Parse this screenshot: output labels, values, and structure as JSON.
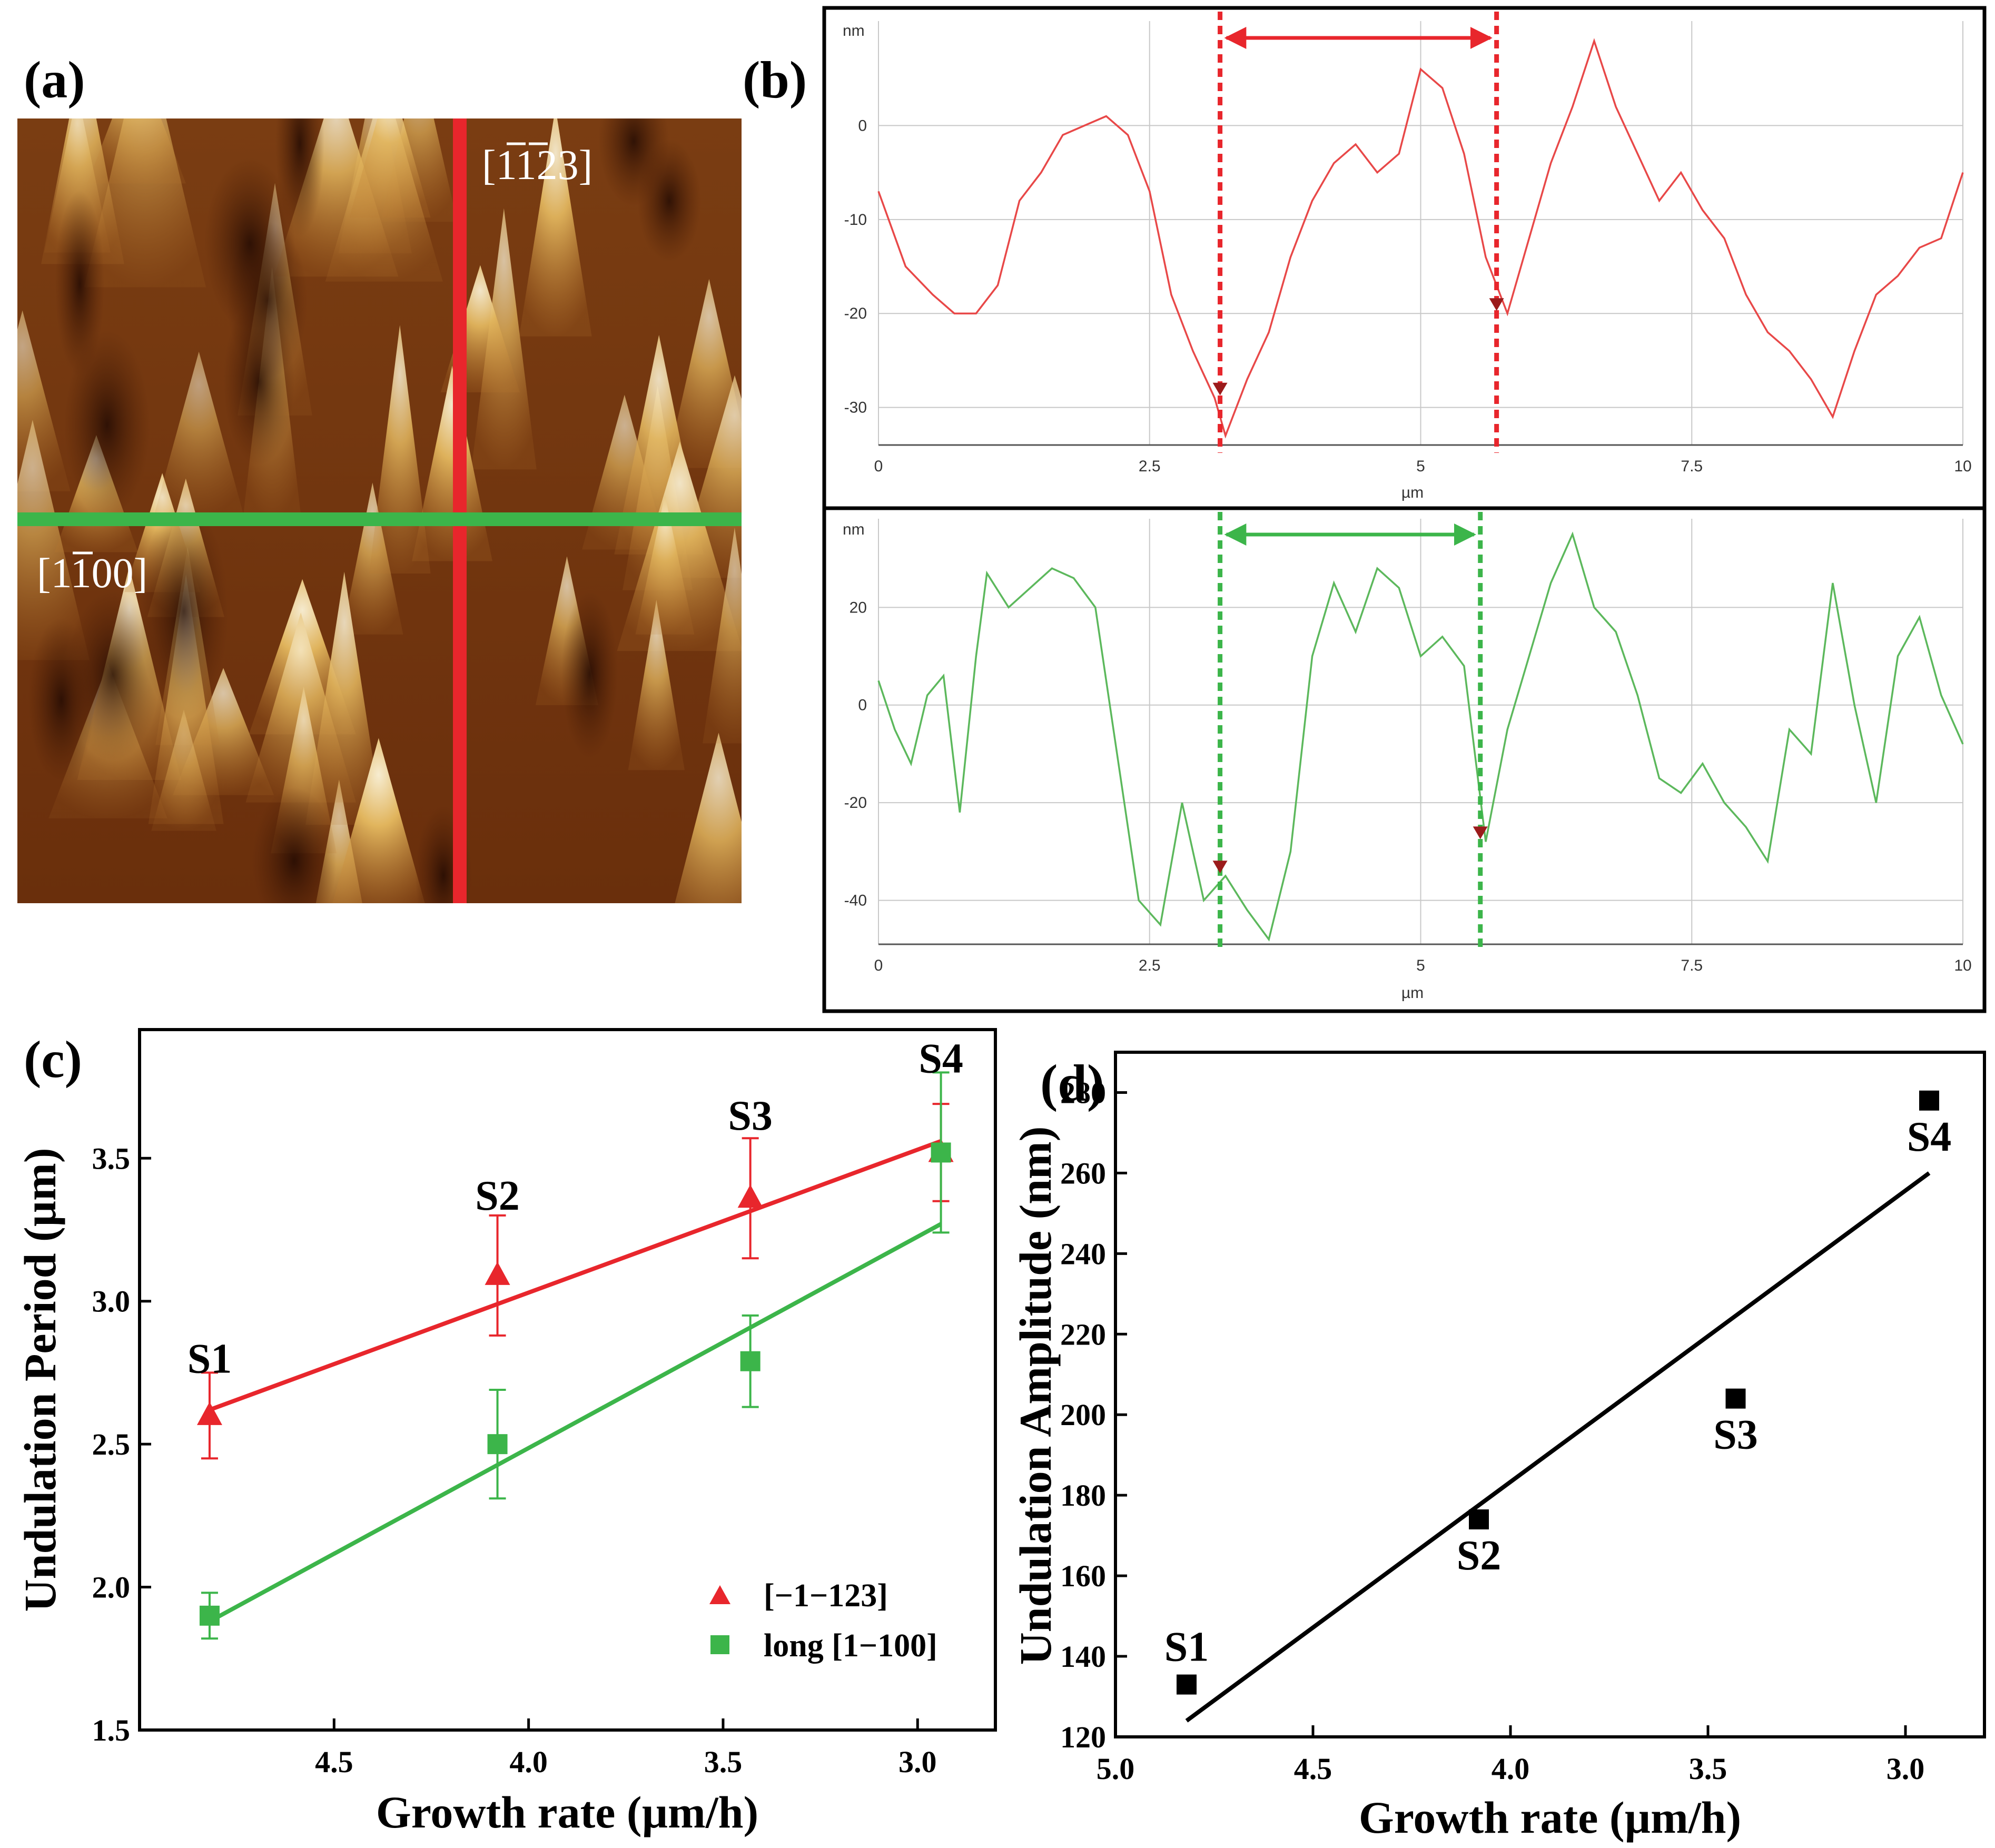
{
  "colors": {
    "red": "#e8262c",
    "green": "#3cb54a",
    "profile_red": "#e84848",
    "profile_green": "#5cb85c",
    "marker_dark": "#9b1b1b",
    "black": "#000000",
    "grid": "#c8c8c8"
  },
  "panels": {
    "a": "(a)",
    "b": "(b)",
    "c": "(c)",
    "d": "(d)"
  },
  "afm_image": {
    "label_vertical": "[¯1¯123]",
    "label_vertical_digits": "1123",
    "label_horizontal": "[1¯100]",
    "label_horizontal_digits": "1100"
  },
  "chart_data": [
    {
      "id": "b-top",
      "type": "line",
      "title": "",
      "xlabel": "µm",
      "ylabel": "nm",
      "xlim": [
        0,
        10
      ],
      "ylim": [
        -34,
        10
      ],
      "xticks": [
        0,
        2.5,
        5,
        7.5,
        10
      ],
      "xtick_labels": [
        "0",
        "2.5",
        "5",
        "7.5",
        "10"
      ],
      "yticks": [
        -30,
        -20,
        -10,
        0
      ],
      "ytick_labels": [
        "-30",
        "-20",
        "-10",
        "0"
      ],
      "markers_x": [
        3.15,
        5.7
      ],
      "x": [
        0,
        0.25,
        0.5,
        0.7,
        0.9,
        1.1,
        1.3,
        1.5,
        1.7,
        1.9,
        2.1,
        2.3,
        2.5,
        2.7,
        2.9,
        3.1,
        3.2,
        3.4,
        3.6,
        3.8,
        4.0,
        4.2,
        4.4,
        4.6,
        4.8,
        5.0,
        5.2,
        5.4,
        5.6,
        5.8,
        6.0,
        6.2,
        6.4,
        6.6,
        6.8,
        7.0,
        7.2,
        7.4,
        7.6,
        7.8,
        8.0,
        8.2,
        8.4,
        8.6,
        8.8,
        9.0,
        9.2,
        9.4,
        9.6,
        9.8,
        10.0
      ],
      "y": [
        -7,
        -15,
        -18,
        -20,
        -20,
        -17,
        -8,
        -5,
        -1,
        0,
        1,
        -1,
        -7,
        -18,
        -24,
        -29,
        -33,
        -27,
        -22,
        -14,
        -8,
        -4,
        -2,
        -5,
        -3,
        6,
        4,
        -3,
        -14,
        -20,
        -12,
        -4,
        2,
        9,
        2,
        -3,
        -8,
        -5,
        -9,
        -12,
        -18,
        -22,
        -24,
        -27,
        -31,
        -24,
        -18,
        -16,
        -13,
        -12,
        -5
      ]
    },
    {
      "id": "b-bottom",
      "type": "line",
      "title": "",
      "xlabel": "µm",
      "ylabel": "nm",
      "xlim": [
        0,
        10
      ],
      "ylim": [
        -49,
        36
      ],
      "xticks": [
        0,
        2.5,
        5,
        7.5,
        10
      ],
      "xtick_labels": [
        "0",
        "2.5",
        "5",
        "7.5",
        "10"
      ],
      "yticks": [
        -40,
        -20,
        0,
        20
      ],
      "ytick_labels": [
        "-40",
        "-20",
        "0",
        "20"
      ],
      "markers_x": [
        3.15,
        5.55
      ],
      "x": [
        0,
        0.15,
        0.3,
        0.45,
        0.6,
        0.75,
        0.9,
        1.0,
        1.2,
        1.4,
        1.6,
        1.8,
        2.0,
        2.2,
        2.4,
        2.6,
        2.8,
        3.0,
        3.2,
        3.4,
        3.6,
        3.8,
        4.0,
        4.2,
        4.4,
        4.6,
        4.8,
        5.0,
        5.2,
        5.4,
        5.6,
        5.8,
        6.0,
        6.2,
        6.4,
        6.6,
        6.8,
        7.0,
        7.2,
        7.4,
        7.6,
        7.8,
        8.0,
        8.2,
        8.4,
        8.6,
        8.8,
        9.0,
        9.2,
        9.4,
        9.6,
        9.8,
        10.0
      ],
      "y": [
        5,
        -5,
        -12,
        2,
        6,
        -22,
        10,
        27,
        20,
        24,
        28,
        26,
        20,
        -10,
        -40,
        -45,
        -20,
        -40,
        -35,
        -42,
        -48,
        -30,
        10,
        25,
        15,
        28,
        24,
        10,
        14,
        8,
        -28,
        -5,
        10,
        25,
        35,
        20,
        15,
        2,
        -15,
        -18,
        -12,
        -20,
        -25,
        -32,
        -5,
        -10,
        25,
        0,
        -20,
        10,
        18,
        2,
        -8
      ]
    },
    {
      "id": "c",
      "type": "scatter",
      "title": "",
      "xlabel": "Growth rate (µm/h)",
      "ylabel": "Undulation Period (µm)",
      "xlim": [
        5.0,
        2.8
      ],
      "ylim": [
        1.5,
        3.95
      ],
      "xticks": [
        4.5,
        4.0,
        3.5,
        3.0
      ],
      "xtick_labels": [
        "4.5",
        "4.0",
        "3.5",
        "3.0"
      ],
      "yticks": [
        1.5,
        2.0,
        2.5,
        3.0,
        3.5
      ],
      "ytick_labels": [
        "1.5",
        "2.0",
        "2.5",
        "3.0",
        "3.5"
      ],
      "series": [
        {
          "name": "[−1−123]",
          "marker": "triangle",
          "color": "#e8262c",
          "x": [
            4.82,
            4.08,
            3.43,
            2.94
          ],
          "y": [
            2.6,
            3.09,
            3.36,
            3.52
          ],
          "err": [
            0.15,
            0.21,
            0.21,
            0.17
          ],
          "fit": [
            [
              4.82,
              2.62
            ],
            [
              2.94,
              3.56
            ]
          ]
        },
        {
          "name": "long [1−100]",
          "marker": "square",
          "color": "#3cb54a",
          "x": [
            4.82,
            4.08,
            3.43,
            2.94
          ],
          "y": [
            1.9,
            2.5,
            2.79,
            3.52
          ],
          "err": [
            0.08,
            0.19,
            0.16,
            0.28
          ],
          "fit": [
            [
              4.82,
              1.88
            ],
            [
              2.94,
              3.27
            ]
          ]
        }
      ],
      "point_labels": [
        "S1",
        "S2",
        "S3",
        "S4"
      ],
      "point_label_y": [
        2.75,
        3.32,
        3.6,
        3.8
      ],
      "legend_position": "bottom-right"
    },
    {
      "id": "d",
      "type": "scatter",
      "title": "",
      "xlabel": "Growth rate (µm/h)",
      "ylabel": "Undulation Amplitude (nm)",
      "xlim": [
        5.0,
        2.8
      ],
      "ylim": [
        120,
        290
      ],
      "xticks": [
        5.0,
        4.5,
        4.0,
        3.5,
        3.0
      ],
      "xtick_labels": [
        "5.0",
        "4.5",
        "4.0",
        "3.5",
        "3.0"
      ],
      "yticks": [
        120,
        140,
        160,
        180,
        200,
        220,
        240,
        260,
        280
      ],
      "ytick_labels": [
        "120",
        "140",
        "160",
        "180",
        "200",
        "220",
        "240",
        "260",
        "280"
      ],
      "series": [
        {
          "name": "amplitude",
          "marker": "square",
          "color": "#000000",
          "x": [
            4.82,
            4.08,
            3.43,
            2.94
          ],
          "y": [
            133,
            174,
            204,
            278
          ],
          "fit": [
            [
              4.82,
              124
            ],
            [
              2.94,
              260
            ]
          ]
        }
      ],
      "point_labels": [
        "S1",
        "S2",
        "S3",
        "S4"
      ],
      "point_label_pos": [
        "above",
        "below",
        "below",
        "below"
      ]
    }
  ]
}
